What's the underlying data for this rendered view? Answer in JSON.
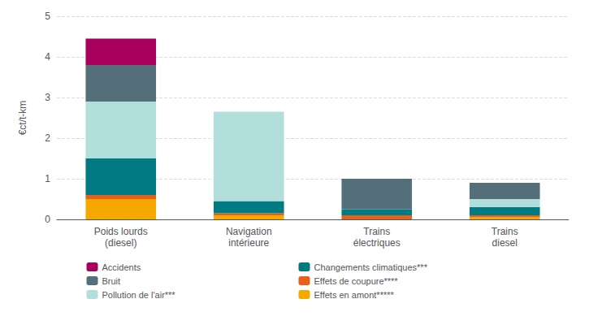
{
  "chart_data": {
    "type": "bar",
    "stacked": true,
    "categories": [
      "Poids lourds\n(diesel)",
      "Navigation\nintérieure",
      "Trains\nélectriques",
      "Trains\ndiesel"
    ],
    "series": [
      {
        "name": "Effets en amont*****",
        "color": "#F5A800",
        "values": [
          0.5,
          0.1,
          0.0,
          0.05
        ]
      },
      {
        "name": "Effets de coupure****",
        "color": "#E8611A",
        "values": [
          0.1,
          0.05,
          0.1,
          0.05
        ]
      },
      {
        "name": "Changements climatiques***",
        "color": "#007B82",
        "values": [
          0.9,
          0.3,
          0.15,
          0.2
        ]
      },
      {
        "name": "Pollution de l'air***",
        "color": "#B2DFDB",
        "values": [
          1.4,
          2.2,
          0.0,
          0.2
        ]
      },
      {
        "name": "Bruit",
        "color": "#546E7A",
        "values": [
          0.9,
          0.0,
          0.75,
          0.4
        ]
      },
      {
        "name": "Accidents",
        "color": "#A8005C",
        "values": [
          0.65,
          0.0,
          0.0,
          0.0
        ]
      }
    ],
    "ylabel": "€ct/t-km",
    "ylim": [
      0,
      5
    ],
    "yticks": [
      0,
      1,
      2,
      3,
      4,
      5
    ],
    "grid": true,
    "legend": "bottom"
  }
}
